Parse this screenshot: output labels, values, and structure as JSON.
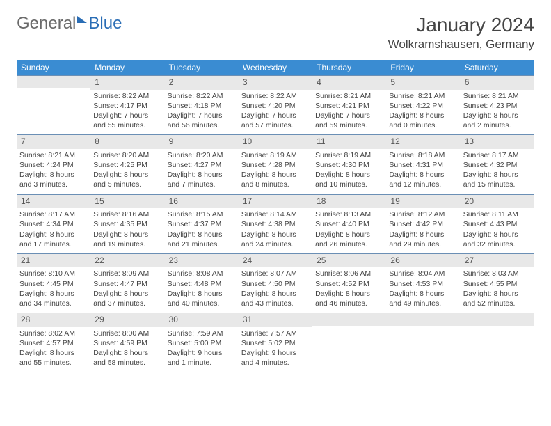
{
  "brand": {
    "part1": "General",
    "part2": "Blue"
  },
  "title": "January 2024",
  "location": "Wolkramshausen, Germany",
  "colors": {
    "header_bg": "#3a8cd2",
    "header_text": "#ffffff",
    "daynum_bg": "#e8e8e8",
    "divider": "#6b8fb5",
    "body_text": "#444444",
    "brand_gray": "#6b6b6b",
    "brand_blue": "#2a6db5"
  },
  "dayNames": [
    "Sunday",
    "Monday",
    "Tuesday",
    "Wednesday",
    "Thursday",
    "Friday",
    "Saturday"
  ],
  "weeks": [
    [
      {
        "num": "",
        "sunrise": "",
        "sunset": "",
        "daylight": ""
      },
      {
        "num": "1",
        "sunrise": "Sunrise: 8:22 AM",
        "sunset": "Sunset: 4:17 PM",
        "daylight": "Daylight: 7 hours and 55 minutes."
      },
      {
        "num": "2",
        "sunrise": "Sunrise: 8:22 AM",
        "sunset": "Sunset: 4:18 PM",
        "daylight": "Daylight: 7 hours and 56 minutes."
      },
      {
        "num": "3",
        "sunrise": "Sunrise: 8:22 AM",
        "sunset": "Sunset: 4:20 PM",
        "daylight": "Daylight: 7 hours and 57 minutes."
      },
      {
        "num": "4",
        "sunrise": "Sunrise: 8:21 AM",
        "sunset": "Sunset: 4:21 PM",
        "daylight": "Daylight: 7 hours and 59 minutes."
      },
      {
        "num": "5",
        "sunrise": "Sunrise: 8:21 AM",
        "sunset": "Sunset: 4:22 PM",
        "daylight": "Daylight: 8 hours and 0 minutes."
      },
      {
        "num": "6",
        "sunrise": "Sunrise: 8:21 AM",
        "sunset": "Sunset: 4:23 PM",
        "daylight": "Daylight: 8 hours and 2 minutes."
      }
    ],
    [
      {
        "num": "7",
        "sunrise": "Sunrise: 8:21 AM",
        "sunset": "Sunset: 4:24 PM",
        "daylight": "Daylight: 8 hours and 3 minutes."
      },
      {
        "num": "8",
        "sunrise": "Sunrise: 8:20 AM",
        "sunset": "Sunset: 4:25 PM",
        "daylight": "Daylight: 8 hours and 5 minutes."
      },
      {
        "num": "9",
        "sunrise": "Sunrise: 8:20 AM",
        "sunset": "Sunset: 4:27 PM",
        "daylight": "Daylight: 8 hours and 7 minutes."
      },
      {
        "num": "10",
        "sunrise": "Sunrise: 8:19 AM",
        "sunset": "Sunset: 4:28 PM",
        "daylight": "Daylight: 8 hours and 8 minutes."
      },
      {
        "num": "11",
        "sunrise": "Sunrise: 8:19 AM",
        "sunset": "Sunset: 4:30 PM",
        "daylight": "Daylight: 8 hours and 10 minutes."
      },
      {
        "num": "12",
        "sunrise": "Sunrise: 8:18 AM",
        "sunset": "Sunset: 4:31 PM",
        "daylight": "Daylight: 8 hours and 12 minutes."
      },
      {
        "num": "13",
        "sunrise": "Sunrise: 8:17 AM",
        "sunset": "Sunset: 4:32 PM",
        "daylight": "Daylight: 8 hours and 15 minutes."
      }
    ],
    [
      {
        "num": "14",
        "sunrise": "Sunrise: 8:17 AM",
        "sunset": "Sunset: 4:34 PM",
        "daylight": "Daylight: 8 hours and 17 minutes."
      },
      {
        "num": "15",
        "sunrise": "Sunrise: 8:16 AM",
        "sunset": "Sunset: 4:35 PM",
        "daylight": "Daylight: 8 hours and 19 minutes."
      },
      {
        "num": "16",
        "sunrise": "Sunrise: 8:15 AM",
        "sunset": "Sunset: 4:37 PM",
        "daylight": "Daylight: 8 hours and 21 minutes."
      },
      {
        "num": "17",
        "sunrise": "Sunrise: 8:14 AM",
        "sunset": "Sunset: 4:38 PM",
        "daylight": "Daylight: 8 hours and 24 minutes."
      },
      {
        "num": "18",
        "sunrise": "Sunrise: 8:13 AM",
        "sunset": "Sunset: 4:40 PM",
        "daylight": "Daylight: 8 hours and 26 minutes."
      },
      {
        "num": "19",
        "sunrise": "Sunrise: 8:12 AM",
        "sunset": "Sunset: 4:42 PM",
        "daylight": "Daylight: 8 hours and 29 minutes."
      },
      {
        "num": "20",
        "sunrise": "Sunrise: 8:11 AM",
        "sunset": "Sunset: 4:43 PM",
        "daylight": "Daylight: 8 hours and 32 minutes."
      }
    ],
    [
      {
        "num": "21",
        "sunrise": "Sunrise: 8:10 AM",
        "sunset": "Sunset: 4:45 PM",
        "daylight": "Daylight: 8 hours and 34 minutes."
      },
      {
        "num": "22",
        "sunrise": "Sunrise: 8:09 AM",
        "sunset": "Sunset: 4:47 PM",
        "daylight": "Daylight: 8 hours and 37 minutes."
      },
      {
        "num": "23",
        "sunrise": "Sunrise: 8:08 AM",
        "sunset": "Sunset: 4:48 PM",
        "daylight": "Daylight: 8 hours and 40 minutes."
      },
      {
        "num": "24",
        "sunrise": "Sunrise: 8:07 AM",
        "sunset": "Sunset: 4:50 PM",
        "daylight": "Daylight: 8 hours and 43 minutes."
      },
      {
        "num": "25",
        "sunrise": "Sunrise: 8:06 AM",
        "sunset": "Sunset: 4:52 PM",
        "daylight": "Daylight: 8 hours and 46 minutes."
      },
      {
        "num": "26",
        "sunrise": "Sunrise: 8:04 AM",
        "sunset": "Sunset: 4:53 PM",
        "daylight": "Daylight: 8 hours and 49 minutes."
      },
      {
        "num": "27",
        "sunrise": "Sunrise: 8:03 AM",
        "sunset": "Sunset: 4:55 PM",
        "daylight": "Daylight: 8 hours and 52 minutes."
      }
    ],
    [
      {
        "num": "28",
        "sunrise": "Sunrise: 8:02 AM",
        "sunset": "Sunset: 4:57 PM",
        "daylight": "Daylight: 8 hours and 55 minutes."
      },
      {
        "num": "29",
        "sunrise": "Sunrise: 8:00 AM",
        "sunset": "Sunset: 4:59 PM",
        "daylight": "Daylight: 8 hours and 58 minutes."
      },
      {
        "num": "30",
        "sunrise": "Sunrise: 7:59 AM",
        "sunset": "Sunset: 5:00 PM",
        "daylight": "Daylight: 9 hours and 1 minute."
      },
      {
        "num": "31",
        "sunrise": "Sunrise: 7:57 AM",
        "sunset": "Sunset: 5:02 PM",
        "daylight": "Daylight: 9 hours and 4 minutes."
      },
      {
        "num": "",
        "sunrise": "",
        "sunset": "",
        "daylight": ""
      },
      {
        "num": "",
        "sunrise": "",
        "sunset": "",
        "daylight": ""
      },
      {
        "num": "",
        "sunrise": "",
        "sunset": "",
        "daylight": ""
      }
    ]
  ]
}
